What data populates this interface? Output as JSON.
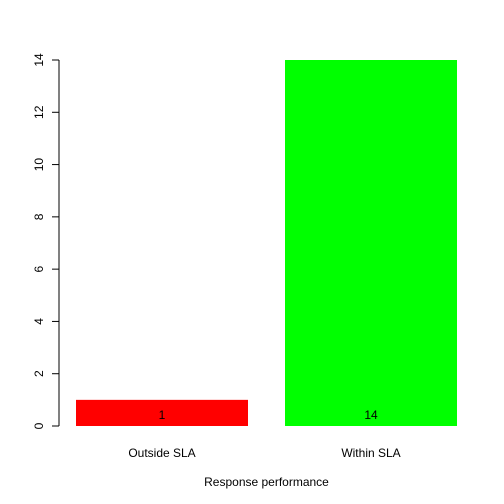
{
  "chart_data": {
    "type": "bar",
    "categories": [
      "Outside SLA",
      "Within SLA"
    ],
    "values": [
      1,
      14
    ],
    "value_labels": [
      "1",
      "14"
    ],
    "colors": [
      "#ff0000",
      "#00ff00"
    ],
    "title": "",
    "xlabel": "Response performance",
    "ylabel": "",
    "ylim": [
      0,
      14
    ],
    "yticks": [
      0,
      2,
      4,
      6,
      8,
      10,
      12,
      14
    ],
    "grid": false,
    "legend": "none"
  }
}
